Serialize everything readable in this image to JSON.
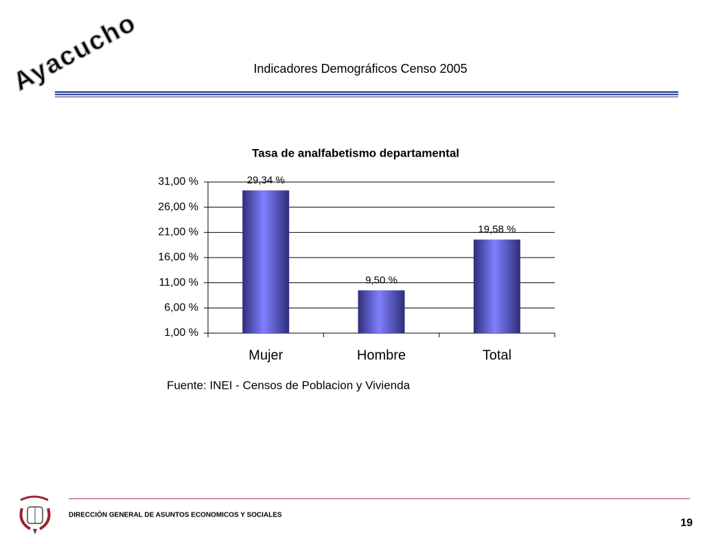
{
  "header": {
    "title": "Indicadores Demográficos Censo 2005",
    "watermark": "Ayacucho"
  },
  "chart_data": {
    "type": "bar",
    "title": "Tasa de analfabetismo departamental",
    "categories": [
      "Mujer",
      "Hombre",
      "Total"
    ],
    "values": [
      29.34,
      9.5,
      19.58
    ],
    "value_labels": [
      "29,34 %",
      "9,50 %",
      "19,58 %"
    ],
    "color": "#8080ff",
    "ylim": [
      1,
      31
    ],
    "yticks": [
      {
        "value": 1,
        "label": "1,00 %"
      },
      {
        "value": 6,
        "label": "6,00 %"
      },
      {
        "value": 11,
        "label": "11,00 %"
      },
      {
        "value": 16,
        "label": "16,00 %"
      },
      {
        "value": 21,
        "label": "21,00 %"
      },
      {
        "value": 26,
        "label": "26,00 %"
      },
      {
        "value": 31,
        "label": "31,00 %"
      }
    ],
    "grid": true,
    "source": "Fuente: INEI - Censos de Poblacion y Vivienda"
  },
  "footer": {
    "organization": "DIRECCIÓN GENERAL DE ASUNTOS ECONOMICOS Y SOCIALES",
    "page": "19"
  }
}
